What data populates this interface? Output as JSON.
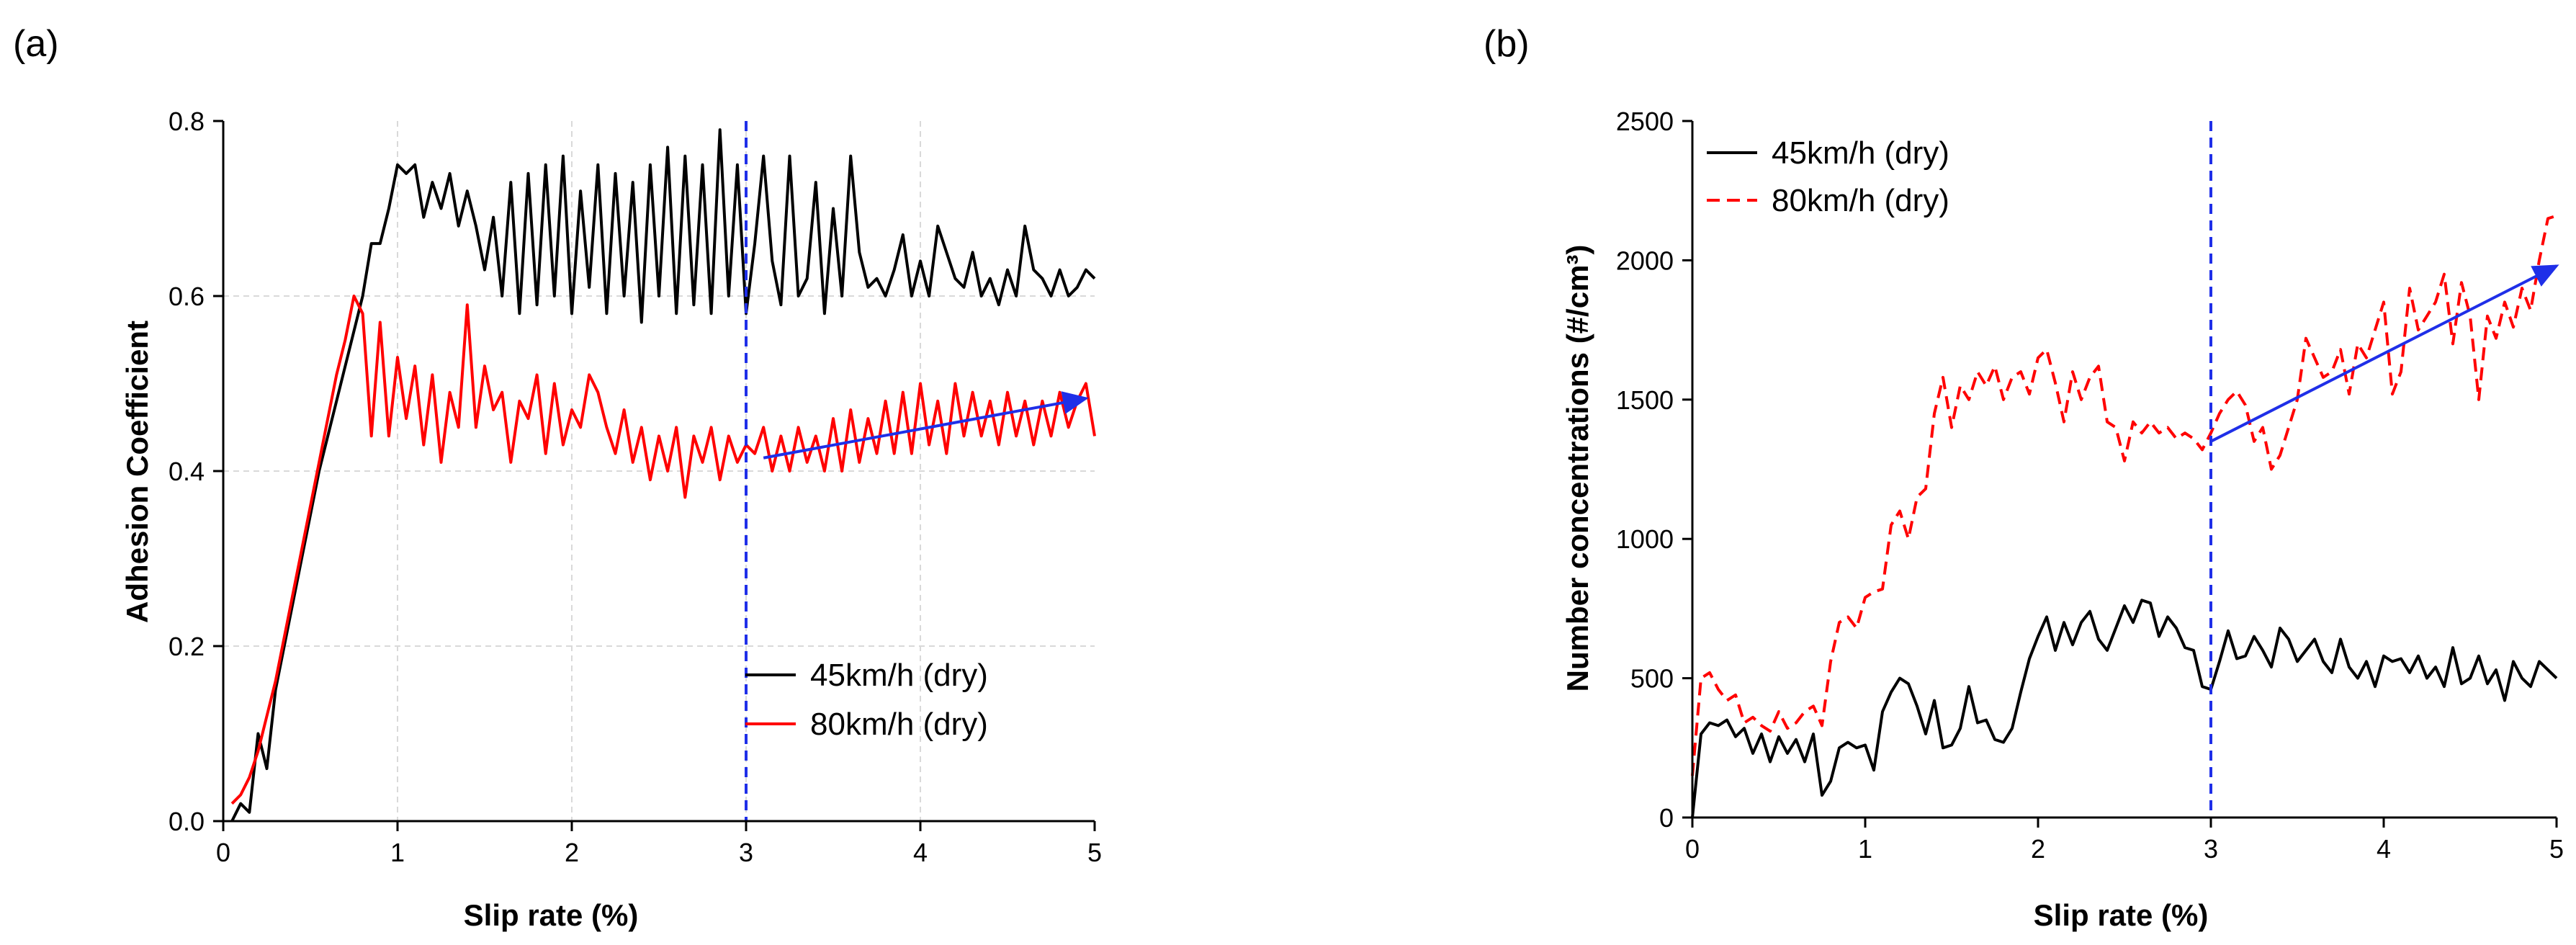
{
  "chart_data": [
    {
      "type": "line",
      "panel_label": "(a)",
      "xlabel": "Slip rate (%)",
      "ylabel": "Adhesion Coefficient",
      "xlim": [
        0,
        5
      ],
      "ylim": [
        0,
        0.8
      ],
      "xticks": [
        0,
        1,
        2,
        3,
        4,
        5
      ],
      "yticks": [
        0.0,
        0.2,
        0.4,
        0.6,
        0.8
      ],
      "xtick_labels": [
        "0",
        "1",
        "2",
        "3",
        "4",
        "5"
      ],
      "ytick_labels": [
        "0.0",
        "0.2",
        "0.4",
        "0.6",
        "0.8"
      ],
      "grid": true,
      "legend_position": "bottom-right",
      "vline_x": 3,
      "trend_arrow": {
        "from": [
          3.1,
          0.415
        ],
        "to": [
          4.95,
          0.483
        ]
      },
      "series": [
        {
          "name": "45km/h (dry)",
          "color": "#000000",
          "dash": "solid",
          "x": [
            0.05,
            0.1,
            0.15,
            0.2,
            0.25,
            0.3,
            0.35,
            0.4,
            0.45,
            0.5,
            0.55,
            0.6,
            0.65,
            0.7,
            0.75,
            0.8,
            0.85,
            0.9,
            0.95,
            1.0,
            1.05,
            1.1,
            1.15,
            1.2,
            1.25,
            1.3,
            1.35,
            1.4,
            1.45,
            1.5,
            1.55,
            1.6,
            1.65,
            1.7,
            1.75,
            1.8,
            1.85,
            1.9,
            1.95,
            2.0,
            2.05,
            2.1,
            2.15,
            2.2,
            2.25,
            2.3,
            2.35,
            2.4,
            2.45,
            2.5,
            2.55,
            2.6,
            2.65,
            2.7,
            2.75,
            2.8,
            2.85,
            2.9,
            2.95,
            3.0,
            3.05,
            3.1,
            3.15,
            3.2,
            3.25,
            3.3,
            3.35,
            3.4,
            3.45,
            3.5,
            3.55,
            3.6,
            3.65,
            3.7,
            3.75,
            3.8,
            3.85,
            3.9,
            3.95,
            4.0,
            4.05,
            4.1,
            4.15,
            4.2,
            4.25,
            4.3,
            4.35,
            4.4,
            4.45,
            4.5,
            4.55,
            4.6,
            4.65,
            4.7,
            4.75,
            4.8,
            4.85,
            4.9,
            4.95,
            5.0
          ],
          "values": [
            0.0,
            0.02,
            0.01,
            0.1,
            0.06,
            0.15,
            0.2,
            0.25,
            0.3,
            0.35,
            0.4,
            0.44,
            0.48,
            0.52,
            0.56,
            0.6,
            0.66,
            0.66,
            0.7,
            0.75,
            0.74,
            0.75,
            0.69,
            0.73,
            0.7,
            0.74,
            0.68,
            0.72,
            0.68,
            0.63,
            0.69,
            0.6,
            0.73,
            0.58,
            0.74,
            0.59,
            0.75,
            0.6,
            0.76,
            0.58,
            0.72,
            0.61,
            0.75,
            0.58,
            0.74,
            0.6,
            0.73,
            0.57,
            0.75,
            0.6,
            0.77,
            0.58,
            0.76,
            0.59,
            0.75,
            0.58,
            0.79,
            0.6,
            0.75,
            0.58,
            0.66,
            0.76,
            0.64,
            0.59,
            0.76,
            0.6,
            0.62,
            0.73,
            0.58,
            0.7,
            0.6,
            0.76,
            0.65,
            0.61,
            0.62,
            0.6,
            0.63,
            0.67,
            0.6,
            0.64,
            0.6,
            0.68,
            0.65,
            0.62,
            0.61,
            0.65,
            0.6,
            0.62,
            0.59,
            0.63,
            0.6,
            0.68,
            0.63,
            0.62,
            0.6,
            0.63,
            0.6,
            0.61,
            0.63,
            0.62
          ]
        },
        {
          "name": "80km/h (dry)",
          "color": "#ff0000",
          "dash": "solid",
          "x": [
            0.05,
            0.1,
            0.15,
            0.2,
            0.25,
            0.3,
            0.35,
            0.4,
            0.45,
            0.5,
            0.55,
            0.6,
            0.65,
            0.7,
            0.75,
            0.8,
            0.85,
            0.9,
            0.95,
            1.0,
            1.05,
            1.1,
            1.15,
            1.2,
            1.25,
            1.3,
            1.35,
            1.4,
            1.45,
            1.5,
            1.55,
            1.6,
            1.65,
            1.7,
            1.75,
            1.8,
            1.85,
            1.9,
            1.95,
            2.0,
            2.05,
            2.1,
            2.15,
            2.2,
            2.25,
            2.3,
            2.35,
            2.4,
            2.45,
            2.5,
            2.55,
            2.6,
            2.65,
            2.7,
            2.75,
            2.8,
            2.85,
            2.9,
            2.95,
            3.0,
            3.05,
            3.1,
            3.15,
            3.2,
            3.25,
            3.3,
            3.35,
            3.4,
            3.45,
            3.5,
            3.55,
            3.6,
            3.65,
            3.7,
            3.75,
            3.8,
            3.85,
            3.9,
            3.95,
            4.0,
            4.05,
            4.1,
            4.15,
            4.2,
            4.25,
            4.3,
            4.35,
            4.4,
            4.45,
            4.5,
            4.55,
            4.6,
            4.65,
            4.7,
            4.75,
            4.8,
            4.85,
            4.9,
            4.95,
            5.0
          ],
          "values": [
            0.02,
            0.03,
            0.05,
            0.08,
            0.12,
            0.16,
            0.21,
            0.26,
            0.31,
            0.36,
            0.41,
            0.46,
            0.51,
            0.55,
            0.6,
            0.58,
            0.44,
            0.57,
            0.44,
            0.53,
            0.46,
            0.52,
            0.43,
            0.51,
            0.41,
            0.49,
            0.45,
            0.59,
            0.45,
            0.52,
            0.47,
            0.49,
            0.41,
            0.48,
            0.46,
            0.51,
            0.42,
            0.5,
            0.43,
            0.47,
            0.45,
            0.51,
            0.49,
            0.45,
            0.42,
            0.47,
            0.41,
            0.45,
            0.39,
            0.44,
            0.4,
            0.45,
            0.37,
            0.44,
            0.41,
            0.45,
            0.39,
            0.44,
            0.41,
            0.43,
            0.42,
            0.45,
            0.4,
            0.44,
            0.4,
            0.45,
            0.41,
            0.44,
            0.4,
            0.46,
            0.4,
            0.47,
            0.41,
            0.46,
            0.42,
            0.48,
            0.42,
            0.49,
            0.42,
            0.5,
            0.43,
            0.48,
            0.42,
            0.5,
            0.44,
            0.49,
            0.44,
            0.48,
            0.43,
            0.49,
            0.44,
            0.48,
            0.43,
            0.48,
            0.44,
            0.49,
            0.45,
            0.48,
            0.5,
            0.44
          ]
        }
      ]
    },
    {
      "type": "line",
      "panel_label": "(b)",
      "xlabel": "Slip rate (%)",
      "ylabel": "Number concentrations (#/cm³)",
      "xlim": [
        0,
        5
      ],
      "ylim": [
        0,
        2500
      ],
      "xticks": [
        0,
        1,
        2,
        3,
        4,
        5
      ],
      "yticks": [
        0,
        500,
        1000,
        1500,
        2000,
        2500
      ],
      "xtick_labels": [
        "0",
        "1",
        "2",
        "3",
        "4",
        "5"
      ],
      "ytick_labels": [
        "0",
        "500",
        "1000",
        "1500",
        "2000",
        "2500"
      ],
      "grid": false,
      "legend_position": "top-left",
      "vline_x": 3,
      "trend_arrow": {
        "from": [
          3.0,
          1350
        ],
        "to": [
          5.0,
          1980
        ]
      },
      "series": [
        {
          "name": "45km/h (dry)",
          "color": "#000000",
          "dash": "solid",
          "x": [
            0.0,
            0.05,
            0.1,
            0.15,
            0.2,
            0.25,
            0.3,
            0.35,
            0.4,
            0.45,
            0.5,
            0.55,
            0.6,
            0.65,
            0.7,
            0.75,
            0.8,
            0.85,
            0.9,
            0.95,
            1.0,
            1.05,
            1.1,
            1.15,
            1.2,
            1.25,
            1.3,
            1.35,
            1.4,
            1.45,
            1.5,
            1.55,
            1.6,
            1.65,
            1.7,
            1.75,
            1.8,
            1.85,
            1.9,
            1.95,
            2.0,
            2.05,
            2.1,
            2.15,
            2.2,
            2.25,
            2.3,
            2.35,
            2.4,
            2.45,
            2.5,
            2.55,
            2.6,
            2.65,
            2.7,
            2.75,
            2.8,
            2.85,
            2.9,
            2.95,
            3.0,
            3.05,
            3.1,
            3.15,
            3.2,
            3.25,
            3.3,
            3.35,
            3.4,
            3.45,
            3.5,
            3.55,
            3.6,
            3.65,
            3.7,
            3.75,
            3.8,
            3.85,
            3.9,
            3.95,
            4.0,
            4.05,
            4.1,
            4.15,
            4.2,
            4.25,
            4.3,
            4.35,
            4.4,
            4.45,
            4.5,
            4.55,
            4.6,
            4.65,
            4.7,
            4.75,
            4.8,
            4.85,
            4.9,
            4.95,
            5.0
          ],
          "values": [
            0,
            300,
            340,
            330,
            350,
            290,
            320,
            230,
            300,
            200,
            290,
            230,
            280,
            200,
            300,
            80,
            130,
            250,
            270,
            250,
            260,
            170,
            380,
            450,
            500,
            480,
            400,
            300,
            420,
            250,
            260,
            320,
            470,
            340,
            350,
            280,
            270,
            320,
            450,
            570,
            650,
            720,
            600,
            700,
            620,
            700,
            740,
            640,
            600,
            680,
            760,
            700,
            780,
            770,
            650,
            720,
            680,
            610,
            600,
            470,
            460,
            560,
            670,
            570,
            580,
            650,
            600,
            540,
            680,
            640,
            560,
            600,
            640,
            560,
            520,
            640,
            540,
            500,
            560,
            470,
            580,
            560,
            570,
            520,
            580,
            500,
            540,
            470,
            610,
            480,
            500,
            580,
            480,
            530,
            420,
            560,
            500,
            470,
            560,
            530,
            500
          ]
        },
        {
          "name": "80km/h (dry)",
          "color": "#ff0000",
          "dash": "dashed",
          "x": [
            0.0,
            0.05,
            0.1,
            0.15,
            0.2,
            0.25,
            0.3,
            0.35,
            0.4,
            0.45,
            0.5,
            0.55,
            0.6,
            0.65,
            0.7,
            0.75,
            0.8,
            0.85,
            0.9,
            0.95,
            1.0,
            1.05,
            1.1,
            1.15,
            1.2,
            1.25,
            1.3,
            1.35,
            1.4,
            1.45,
            1.5,
            1.55,
            1.6,
            1.65,
            1.7,
            1.75,
            1.8,
            1.85,
            1.9,
            1.95,
            2.0,
            2.05,
            2.1,
            2.15,
            2.2,
            2.25,
            2.3,
            2.35,
            2.4,
            2.45,
            2.5,
            2.55,
            2.6,
            2.65,
            2.7,
            2.75,
            2.8,
            2.85,
            2.9,
            2.95,
            3.0,
            3.05,
            3.1,
            3.15,
            3.2,
            3.25,
            3.3,
            3.35,
            3.4,
            3.45,
            3.5,
            3.55,
            3.6,
            3.65,
            3.7,
            3.75,
            3.8,
            3.85,
            3.9,
            3.95,
            4.0,
            4.05,
            4.1,
            4.15,
            4.2,
            4.25,
            4.3,
            4.35,
            4.4,
            4.45,
            4.5,
            4.55,
            4.6,
            4.65,
            4.7,
            4.75,
            4.8,
            4.85,
            4.9,
            4.95,
            5.0
          ],
          "values": [
            150,
            500,
            520,
            460,
            420,
            440,
            340,
            360,
            330,
            310,
            380,
            320,
            340,
            380,
            400,
            330,
            560,
            700,
            720,
            680,
            790,
            810,
            820,
            1050,
            1100,
            1000,
            1150,
            1180,
            1450,
            1580,
            1400,
            1550,
            1500,
            1600,
            1550,
            1620,
            1500,
            1580,
            1600,
            1520,
            1650,
            1680,
            1560,
            1420,
            1600,
            1500,
            1580,
            1620,
            1420,
            1400,
            1280,
            1420,
            1380,
            1420,
            1380,
            1400,
            1360,
            1380,
            1360,
            1320,
            1380,
            1450,
            1500,
            1530,
            1480,
            1350,
            1400,
            1250,
            1300,
            1400,
            1500,
            1720,
            1650,
            1580,
            1600,
            1680,
            1520,
            1700,
            1650,
            1750,
            1850,
            1520,
            1600,
            1900,
            1750,
            1800,
            1850,
            1950,
            1700,
            1920,
            1800,
            1500,
            1800,
            1720,
            1850,
            1760,
            1900,
            1820,
            2000,
            2150,
            2160
          ]
        }
      ]
    }
  ]
}
